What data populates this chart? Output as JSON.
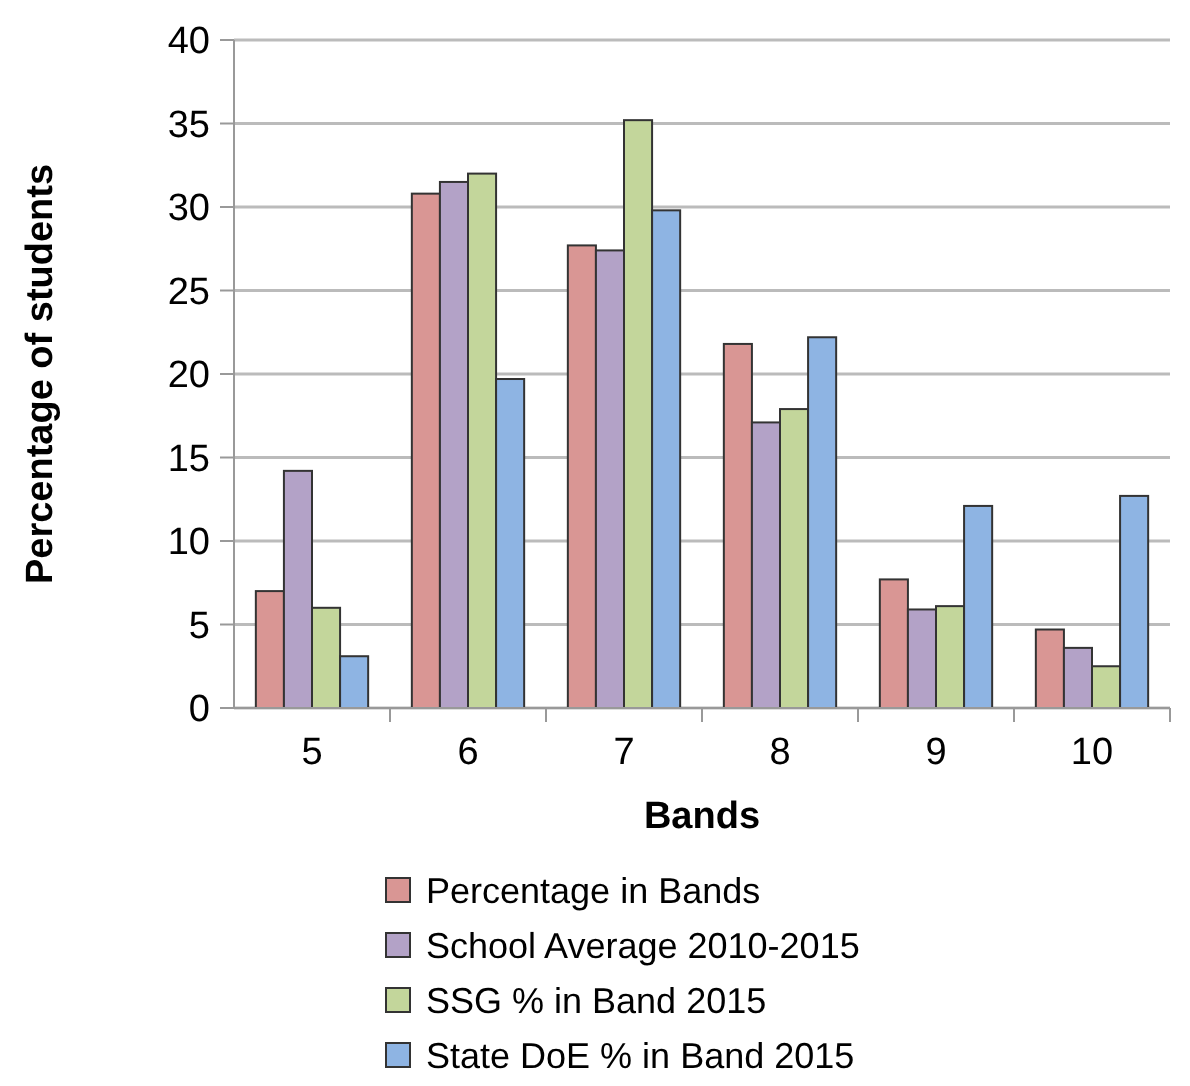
{
  "chart_data": {
    "type": "bar",
    "xlabel": "Bands",
    "ylabel": "Percentage of students",
    "categories": [
      "5",
      "6",
      "7",
      "8",
      "9",
      "10"
    ],
    "series": [
      {
        "name": "Percentage in Bands",
        "color": "#d99694",
        "values": [
          7.0,
          30.8,
          27.7,
          21.8,
          7.7,
          4.7
        ]
      },
      {
        "name": "School Average 2010-2015",
        "color": "#b3a2c7",
        "values": [
          14.2,
          31.5,
          27.4,
          17.1,
          5.9,
          3.6
        ]
      },
      {
        "name": "SSG % in Band 2015",
        "color": "#c3d69b",
        "values": [
          6.0,
          32.0,
          35.2,
          17.9,
          6.1,
          2.5
        ]
      },
      {
        "name": "State DoE % in Band 2015",
        "color": "#8eb4e3",
        "values": [
          3.1,
          19.7,
          29.8,
          22.2,
          12.1,
          12.7
        ]
      }
    ],
    "ylim": [
      0,
      40
    ],
    "yticks": [
      0,
      5,
      10,
      15,
      20,
      25,
      30,
      35,
      40
    ],
    "grid": "y",
    "legend": "bottom"
  }
}
